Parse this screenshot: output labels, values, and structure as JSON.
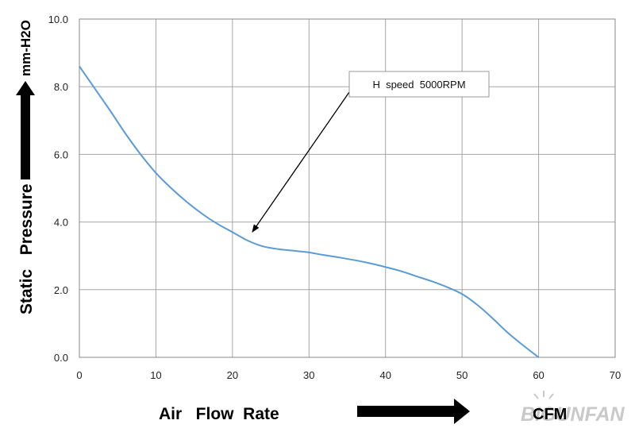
{
  "chart_data": {
    "type": "line",
    "title": "",
    "xlabel": "Air   Flow  Rate",
    "xunit": "CFM",
    "ylabel": "Static   Pressure",
    "yunit": "mm-H2O",
    "xlim": [
      0,
      70
    ],
    "ylim": [
      0,
      10
    ],
    "xticks": [
      0,
      10,
      20,
      30,
      40,
      50,
      60,
      70
    ],
    "yticks": [
      "0.0",
      "2.0",
      "4.0",
      "6.0",
      "8.0",
      "10.0"
    ],
    "grid": true,
    "series": [
      {
        "name": "H  speed  5000RPM",
        "color": "#5b9bd5",
        "x": [
          0,
          2,
          4,
          6,
          8,
          10,
          12,
          14,
          16,
          18,
          20,
          22,
          24,
          26,
          28,
          30,
          32,
          34,
          36,
          38,
          40,
          42,
          44,
          46,
          48,
          50,
          52,
          54,
          56,
          58,
          60
        ],
        "y": [
          8.6,
          7.95,
          7.3,
          6.62,
          6.0,
          5.45,
          5.0,
          4.6,
          4.25,
          3.95,
          3.7,
          3.45,
          3.28,
          3.2,
          3.15,
          3.1,
          3.02,
          2.95,
          2.87,
          2.78,
          2.67,
          2.55,
          2.4,
          2.25,
          2.08,
          1.87,
          1.55,
          1.15,
          0.72,
          0.35,
          0.0
        ]
      }
    ],
    "annotation": {
      "text": "H  speed  5000RPM",
      "target": [
        22,
        3.6
      ]
    }
  },
  "watermark": "BIGUNFAN"
}
